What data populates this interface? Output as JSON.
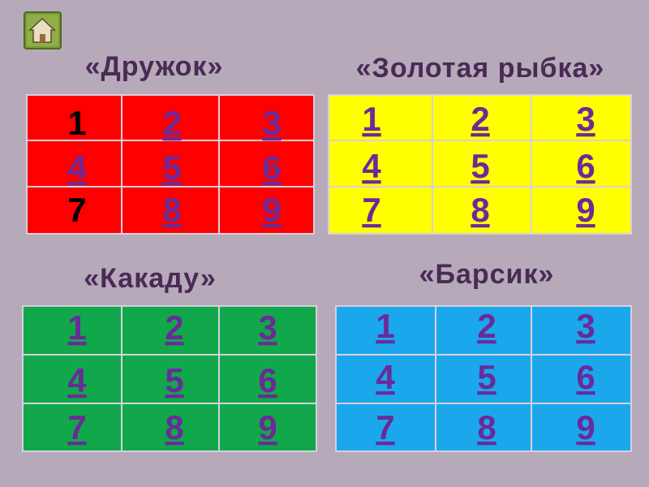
{
  "groups": [
    {
      "title": "«Дружок»",
      "color": "#ff0000",
      "cells": [
        {
          "label": "1",
          "link": false
        },
        {
          "label": "2",
          "link": true
        },
        {
          "label": "3",
          "link": true
        },
        {
          "label": "4",
          "link": true
        },
        {
          "label": "5",
          "link": true
        },
        {
          "label": "6",
          "link": true
        },
        {
          "label": "7",
          "link": false
        },
        {
          "label": "8",
          "link": true
        },
        {
          "label": "9",
          "link": true
        }
      ]
    },
    {
      "title": "«Золотая рыбка»",
      "color": "#ffff00",
      "cells": [
        {
          "label": "1",
          "link": true
        },
        {
          "label": "2",
          "link": true
        },
        {
          "label": "3",
          "link": true
        },
        {
          "label": "4",
          "link": true
        },
        {
          "label": "5",
          "link": true
        },
        {
          "label": "6",
          "link": true
        },
        {
          "label": "7",
          "link": true
        },
        {
          "label": "8",
          "link": true
        },
        {
          "label": "9",
          "link": true
        }
      ]
    },
    {
      "title": "«Какаду»",
      "color": "#10a84a",
      "cells": [
        {
          "label": "1",
          "link": true
        },
        {
          "label": "2",
          "link": true
        },
        {
          "label": "3",
          "link": true
        },
        {
          "label": "4",
          "link": true
        },
        {
          "label": "5",
          "link": true
        },
        {
          "label": "6",
          "link": true
        },
        {
          "label": "7",
          "link": true
        },
        {
          "label": "8",
          "link": true
        },
        {
          "label": "9",
          "link": true
        }
      ]
    },
    {
      "title": "«Барсик»",
      "color": "#1aa7ec",
      "cells": [
        {
          "label": "1",
          "link": true
        },
        {
          "label": "2",
          "link": true
        },
        {
          "label": "3",
          "link": true
        },
        {
          "label": "4",
          "link": true
        },
        {
          "label": "5",
          "link": true
        },
        {
          "label": "6",
          "link": true
        },
        {
          "label": "7",
          "link": true
        },
        {
          "label": "8",
          "link": true
        },
        {
          "label": "9",
          "link": true
        }
      ]
    }
  ]
}
